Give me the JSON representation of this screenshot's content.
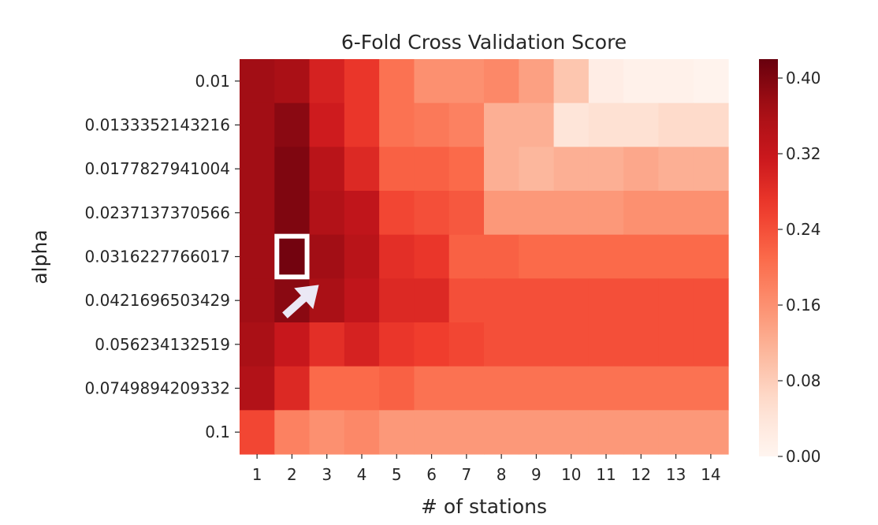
{
  "chart_data": {
    "type": "heatmap",
    "title": "6-Fold Cross Validation Score",
    "xlabel": "# of stations",
    "ylabel": "alpha",
    "x": [
      "1",
      "2",
      "3",
      "4",
      "5",
      "6",
      "7",
      "8",
      "9",
      "10",
      "11",
      "12",
      "13",
      "14"
    ],
    "y": [
      "0.01",
      "0.0133352143216",
      "0.0177827941004",
      "0.0237137370566",
      "0.0316227766017",
      "0.0421696503429",
      "0.056234132519",
      "0.0749894209332",
      "0.1"
    ],
    "values": [
      [
        0.37,
        0.36,
        0.3,
        0.27,
        0.2,
        0.16,
        0.16,
        0.17,
        0.14,
        0.09,
        0.02,
        0.01,
        0.01,
        0.005
      ],
      [
        0.37,
        0.39,
        0.31,
        0.27,
        0.2,
        0.19,
        0.18,
        0.12,
        0.12,
        0.04,
        0.05,
        0.05,
        0.06,
        0.06
      ],
      [
        0.37,
        0.4,
        0.34,
        0.29,
        0.22,
        0.22,
        0.21,
        0.12,
        0.11,
        0.12,
        0.12,
        0.13,
        0.12,
        0.12
      ],
      [
        0.37,
        0.4,
        0.35,
        0.33,
        0.25,
        0.24,
        0.23,
        0.15,
        0.15,
        0.15,
        0.15,
        0.16,
        0.16,
        0.16
      ],
      [
        0.37,
        0.41,
        0.37,
        0.34,
        0.28,
        0.27,
        0.22,
        0.22,
        0.21,
        0.21,
        0.21,
        0.21,
        0.21,
        0.21
      ],
      [
        0.37,
        0.39,
        0.36,
        0.33,
        0.29,
        0.29,
        0.24,
        0.24,
        0.24,
        0.24,
        0.24,
        0.24,
        0.24,
        0.24
      ],
      [
        0.36,
        0.32,
        0.28,
        0.3,
        0.27,
        0.26,
        0.25,
        0.24,
        0.24,
        0.24,
        0.24,
        0.24,
        0.24,
        0.24
      ],
      [
        0.35,
        0.29,
        0.21,
        0.21,
        0.22,
        0.2,
        0.2,
        0.2,
        0.2,
        0.2,
        0.2,
        0.2,
        0.2,
        0.2
      ],
      [
        0.25,
        0.18,
        0.16,
        0.17,
        0.15,
        0.15,
        0.15,
        0.15,
        0.15,
        0.15,
        0.15,
        0.15,
        0.15,
        0.15
      ]
    ],
    "vmin": 0.0,
    "vmax": 0.42,
    "colormap": "Reds",
    "colorbar_ticks": [
      "0.00",
      "0.08",
      "0.16",
      "0.24",
      "0.32",
      "0.40"
    ],
    "highlight": {
      "x": "2",
      "y": "0.0316227766017"
    }
  },
  "colors": {
    "highlight_box": "#ffffff",
    "arrow": "#ebe8f5",
    "text": "#262626"
  }
}
